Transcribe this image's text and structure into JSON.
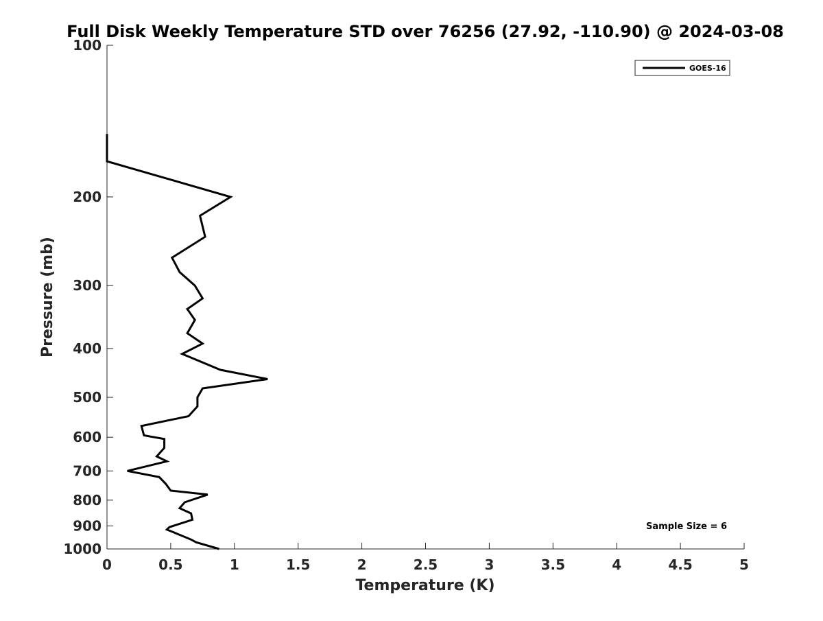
{
  "chart_data": {
    "type": "line",
    "title": "Full Disk Weekly Temperature STD over 76256 (27.92, -110.90) @ 2024-03-08",
    "xlabel": "Temperature (K)",
    "ylabel": "Pressure (mb)",
    "xlim": [
      0,
      5
    ],
    "ylim": [
      100,
      1000
    ],
    "y_scale": "log",
    "y_reversed": true,
    "x_ticks": [
      0,
      0.5,
      1,
      1.5,
      2,
      2.5,
      3,
      3.5,
      4,
      4.5,
      5
    ],
    "x_tick_labels": [
      "0",
      "0.5",
      "1",
      "1.5",
      "2",
      "2.5",
      "3",
      "3.5",
      "4",
      "4.5",
      "5"
    ],
    "y_ticks": [
      100,
      200,
      300,
      400,
      500,
      600,
      700,
      800,
      900,
      1000
    ],
    "y_tick_labels": [
      "100",
      "200",
      "300",
      "400",
      "500",
      "600",
      "700",
      "800",
      "900",
      "1000"
    ],
    "grid": false,
    "legend_position": "top-right",
    "series": [
      {
        "name": "GOES-16",
        "color": "#000000",
        "points": [
          [
            0.0,
            150
          ],
          [
            0.0,
            170
          ],
          [
            0.97,
            200
          ],
          [
            0.73,
            218
          ],
          [
            0.77,
            240
          ],
          [
            0.51,
            264
          ],
          [
            0.57,
            282
          ],
          [
            0.69,
            300
          ],
          [
            0.75,
            318
          ],
          [
            0.63,
            334
          ],
          [
            0.69,
            351
          ],
          [
            0.63,
            373
          ],
          [
            0.75,
            391
          ],
          [
            0.59,
            410
          ],
          [
            0.89,
            441
          ],
          [
            1.26,
            460
          ],
          [
            0.75,
            480
          ],
          [
            0.71,
            500
          ],
          [
            0.71,
            521
          ],
          [
            0.64,
            545
          ],
          [
            0.27,
            570
          ],
          [
            0.29,
            595
          ],
          [
            0.45,
            605
          ],
          [
            0.45,
            630
          ],
          [
            0.39,
            655
          ],
          [
            0.47,
            670
          ],
          [
            0.16,
            700
          ],
          [
            0.41,
            720
          ],
          [
            0.46,
            742
          ],
          [
            0.5,
            766
          ],
          [
            0.79,
            780
          ],
          [
            0.61,
            808
          ],
          [
            0.57,
            830
          ],
          [
            0.66,
            850
          ],
          [
            0.67,
            875
          ],
          [
            0.49,
            905
          ],
          [
            0.47,
            915
          ],
          [
            0.66,
            958
          ],
          [
            0.7,
            970
          ],
          [
            0.88,
            1000
          ]
        ]
      }
    ],
    "annotation": "Sample Size = 6"
  }
}
